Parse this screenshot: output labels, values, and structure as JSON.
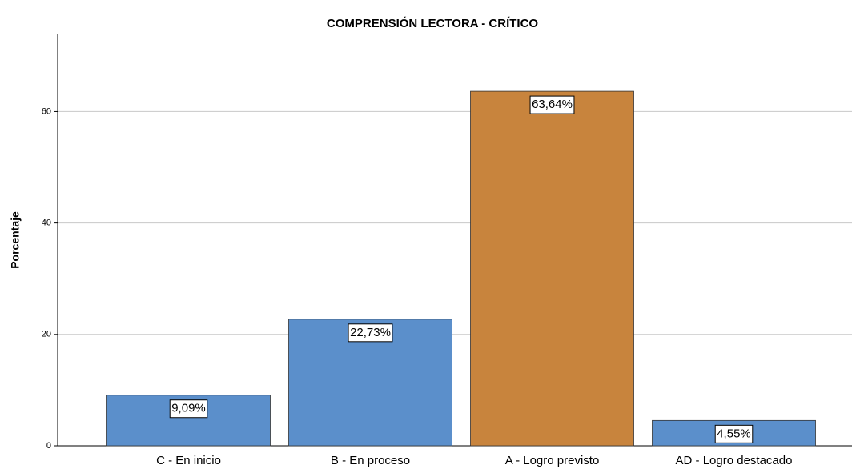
{
  "chart_data": {
    "type": "bar",
    "title": "COMPRENSIÓN LECTORA - CRÍTICO",
    "y_label": "Porcentaje",
    "categories": [
      "C - En inicio",
      "B - En proceso",
      "A - Logro previsto",
      "AD - Logro destacado"
    ],
    "values": [
      9.09,
      22.73,
      63.64,
      4.55
    ],
    "value_labels": [
      "9,09%",
      "22,73%",
      "63,64%",
      "4,55%"
    ],
    "colors": [
      "#5b8fcb",
      "#5b8fcb",
      "#c8843d",
      "#5b8fcb"
    ],
    "ylim": [
      0,
      74
    ],
    "yticks": [
      0,
      20,
      40,
      60
    ],
    "grid": true
  }
}
